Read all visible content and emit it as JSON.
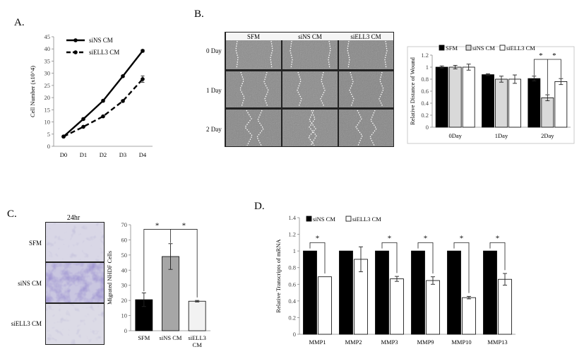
{
  "panels": {
    "a": {
      "letter": "A."
    },
    "b": {
      "letter": "B.",
      "cols": [
        "SFM",
        "siNS CM",
        "siELL3 CM"
      ],
      "rows": [
        "0 Day",
        "1 Day",
        "2 Day"
      ]
    },
    "c": {
      "letter": "C.",
      "time": "24hr",
      "rows": [
        "SFM",
        "siNS CM",
        "siELL3 CM"
      ]
    },
    "d": {
      "letter": "D."
    }
  },
  "chart_data": [
    {
      "id": "growth",
      "type": "line",
      "categories": [
        "D0",
        "D1",
        "D2",
        "D3",
        "D4"
      ],
      "ylabel": "Cell Number (x10^4)",
      "ylim": [
        0,
        45
      ],
      "yticks": [
        0,
        5,
        10,
        15,
        20,
        25,
        30,
        35,
        40,
        45
      ],
      "series": [
        {
          "name": "siNS CM",
          "values": [
            4,
            11.2,
            18.7,
            28.8,
            39.2
          ],
          "errors": [
            0.3,
            0.4,
            0.4,
            0.4,
            0.5
          ],
          "style": "solid"
        },
        {
          "name": "siELL3 CM",
          "values": [
            4,
            8,
            12.3,
            18.6,
            27.6
          ],
          "errors": [
            0.3,
            0.3,
            0.3,
            0.4,
            1.3
          ],
          "style": "dashed"
        }
      ]
    },
    {
      "id": "wound",
      "type": "bar",
      "categories": [
        "0Day",
        "1Day",
        "2Day"
      ],
      "ylabel": "Relative Distance of Wound",
      "ylim": [
        0,
        1.2
      ],
      "yticks": [
        0,
        0.2,
        0.4,
        0.6,
        0.8,
        1,
        1.2
      ],
      "series": [
        {
          "name": "SFM",
          "values": [
            1.0,
            0.875,
            0.81
          ],
          "errors": [
            0.02,
            0.015,
            0.04
          ],
          "color": "#000000"
        },
        {
          "name": "siNS CM",
          "values": [
            1.0,
            0.8,
            0.49
          ],
          "errors": [
            0.03,
            0.05,
            0.05
          ],
          "color": "#d9d9d9"
        },
        {
          "name": "siELL3 CM",
          "values": [
            1.0,
            0.8,
            0.76
          ],
          "errors": [
            0.05,
            0.07,
            0.05
          ],
          "color": "#ffffff"
        }
      ],
      "annotations": [
        "*",
        "*"
      ]
    },
    {
      "id": "migration",
      "type": "bar",
      "categories": [
        "SFM",
        "siNS CM",
        "siELL3\nCM"
      ],
      "ylabel": "Migrated NHDF Cells",
      "ylim": [
        0,
        70
      ],
      "yticks": [
        0,
        10,
        20,
        30,
        40,
        50,
        60,
        70
      ],
      "values": [
        20.5,
        49,
        19.5
      ],
      "errors": [
        4.5,
        8.5,
        0.5
      ],
      "colors": [
        "#000000",
        "#a6a6a6",
        "#f2f2f2"
      ],
      "annotations": [
        "*",
        "*"
      ]
    },
    {
      "id": "mrna",
      "type": "bar",
      "categories": [
        "MMP1",
        "MMP2",
        "MMP3",
        "MMP9",
        "MMP10",
        "MMP13"
      ],
      "ylabel": "Relative Transcripts of mRNA",
      "ylim": [
        0,
        1.4
      ],
      "yticks": [
        0,
        0.2,
        0.4,
        0.6,
        0.8,
        1,
        1.2,
        1.4
      ],
      "series": [
        {
          "name": "siNS CM",
          "values": [
            1,
            1,
            1,
            1,
            1,
            1
          ],
          "errors": [
            0,
            0,
            0,
            0,
            0,
            0
          ],
          "color": "#000000"
        },
        {
          "name": "siELL3 CM",
          "values": [
            0.69,
            0.9,
            0.665,
            0.645,
            0.44,
            0.66
          ],
          "errors": [
            0,
            0.15,
            0.03,
            0.045,
            0.015,
            0.07
          ],
          "color": "#ffffff"
        }
      ],
      "stars": [
        "*",
        "",
        "*",
        "*",
        "*",
        "*"
      ]
    }
  ]
}
